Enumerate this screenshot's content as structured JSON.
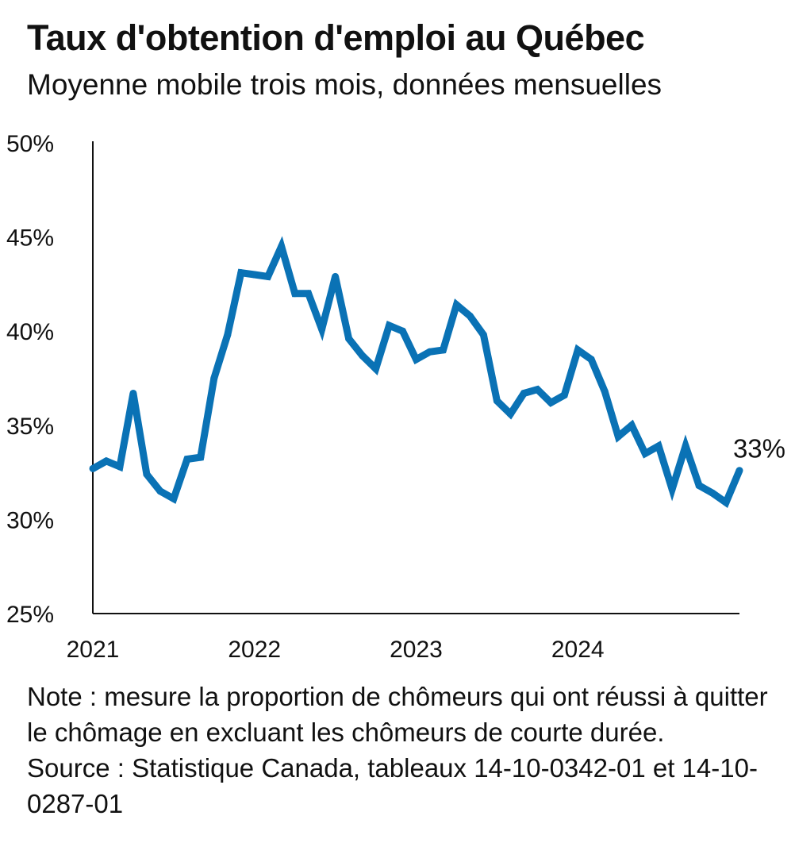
{
  "title": "Taux d'obtention d'emploi au Québec",
  "subtitle": "Moyenne mobile trois mois, données mensuelles",
  "note": "Note : mesure la proportion de chômeurs qui ont réussi à quitter le chômage en excluant les chômeurs de courte durée.",
  "source": "Source : Statistique Canada, tableaux 14-10-0342-01 et 14-10-0287-01",
  "end_label": "33%",
  "colors": {
    "line": "#0a72b5",
    "axis": "#111111"
  },
  "chart_data": {
    "type": "line",
    "title": "Taux d'obtention d'emploi au Québec",
    "subtitle": "Moyenne mobile trois mois, données mensuelles",
    "xlabel": "",
    "ylabel": "",
    "ylim": [
      25,
      50
    ],
    "yticks": [
      25,
      30,
      35,
      40,
      45,
      50
    ],
    "ytick_labels": [
      "25%",
      "30%",
      "35%",
      "40%",
      "45%",
      "50%"
    ],
    "xtick_labels": [
      "2021",
      "2022",
      "2023",
      "2024"
    ],
    "grid": false,
    "x_start": "2021-01",
    "series": [
      {
        "values": [
          32.7,
          33.1,
          32.8,
          36.7,
          32.4,
          31.5,
          31.1,
          33.2,
          33.3,
          37.5,
          39.8,
          43.1,
          43.0,
          42.9,
          44.5,
          42.0,
          42.0,
          40.1,
          42.9,
          39.6,
          38.7,
          38.0,
          40.3,
          40.0,
          38.5,
          38.9,
          39.0,
          41.4,
          40.8,
          39.8,
          36.3,
          35.6,
          36.7,
          36.9,
          36.2,
          36.6,
          39.0,
          38.5,
          36.8,
          34.4,
          35.0,
          33.5,
          33.9,
          31.6,
          33.9,
          31.8,
          31.4,
          30.9,
          32.6
        ]
      }
    ]
  }
}
